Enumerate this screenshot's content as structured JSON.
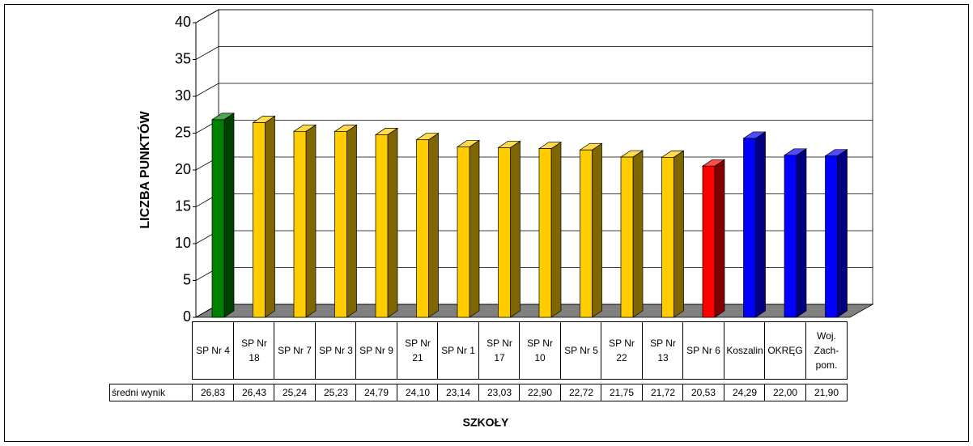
{
  "chart_data": {
    "type": "bar3d",
    "y_label": "LICZBA PUNKTÓW",
    "x_label": "SZKOŁY",
    "categories": [
      "SP Nr 4",
      "SP Nr 18",
      "SP Nr 7",
      "SP Nr 3",
      "SP Nr 9",
      "SP Nr 21",
      "SP Nr 1",
      "SP Nr 17",
      "SP Nr 10",
      "SP Nr 5",
      "SP Nr 22",
      "SP Nr 13",
      "SP Nr 6",
      "Koszalin",
      "OKRĘG",
      "Woj. Zach-pom."
    ],
    "series": [
      {
        "name": "średni wynik",
        "values": [
          26.83,
          26.43,
          25.24,
          25.23,
          24.79,
          24.1,
          23.14,
          23.03,
          22.9,
          22.72,
          21.75,
          21.72,
          20.53,
          24.29,
          22.0,
          21.9
        ],
        "value_labels": [
          "26,83",
          "26,43",
          "25,24",
          "25,23",
          "24,79",
          "24,10",
          "23,14",
          "23,03",
          "22,90",
          "22,72",
          "21,75",
          "21,72",
          "20,53",
          "24,29",
          "22,00",
          "21,90"
        ],
        "colors": [
          "#008000",
          "#ffcc00",
          "#ffcc00",
          "#ffcc00",
          "#ffcc00",
          "#ffcc00",
          "#ffcc00",
          "#ffcc00",
          "#ffcc00",
          "#ffcc00",
          "#ffcc00",
          "#ffcc00",
          "#ff0000",
          "#0000ff",
          "#0000ff",
          "#0000ff"
        ]
      }
    ],
    "ylim": [
      0,
      40
    ],
    "yticks": [
      0,
      5,
      10,
      15,
      20,
      25,
      30,
      35,
      40
    ],
    "grid": true,
    "data_table": true
  }
}
